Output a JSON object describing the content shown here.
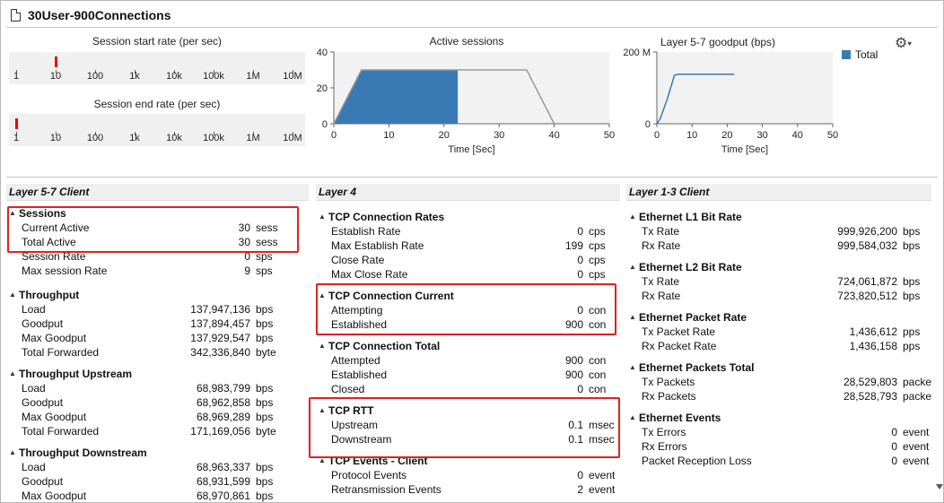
{
  "window": {
    "title": "30User-900Connections"
  },
  "charts": {
    "session_start": {
      "title": "Session start rate (per sec)",
      "ticks": [
        "1",
        "10",
        "100",
        "1k",
        "10k",
        "100k",
        "1M",
        "10M"
      ],
      "marker_value": "10"
    },
    "session_end": {
      "title": "Session end rate (per sec)",
      "ticks": [
        "1",
        "10",
        "100",
        "1k",
        "10k",
        "100k",
        "1M",
        "10M"
      ],
      "marker_value": "1"
    },
    "active_sessions": {
      "title": "Active sessions",
      "xlabel": "Time [Sec]",
      "yticks": [
        "0",
        "20",
        "40"
      ],
      "xticks": [
        "0",
        "10",
        "20",
        "30",
        "40",
        "50"
      ]
    },
    "goodput": {
      "title": "Layer 5-7 goodput (bps)",
      "xlabel": "Time [Sec]",
      "yticks": [
        "0",
        "200 M"
      ],
      "xticks": [
        "0",
        "10",
        "20",
        "30",
        "40",
        "50"
      ],
      "legend": "Total"
    }
  },
  "chart_data": [
    {
      "type": "area",
      "title": "Active sessions",
      "xlabel": "Time [Sec]",
      "ylabel": "",
      "xlim": [
        0,
        50
      ],
      "ylim": [
        0,
        40
      ],
      "series": [
        {
          "x": [
            0,
            5,
            22.5
          ],
          "y": [
            0,
            30,
            30
          ]
        },
        {
          "x": [
            0,
            5,
            35,
            40
          ],
          "y": [
            0,
            30,
            30,
            0
          ]
        }
      ],
      "colors": {
        "fill": "#3a7ab4",
        "outline": "#999999"
      }
    },
    {
      "type": "line",
      "title": "Layer 5-7 goodput (bps)",
      "xlabel": "Time [Sec]",
      "ylabel": "",
      "xlim": [
        0,
        50
      ],
      "ylim": [
        0,
        200000000
      ],
      "series": [
        {
          "name": "Total",
          "x": [
            0,
            1,
            3,
            5,
            6,
            8,
            10,
            14,
            18,
            22
          ],
          "y": [
            0,
            15000000,
            70000000,
            135000000,
            138000000,
            138000000,
            138000000,
            138000000,
            138000000,
            138000000
          ]
        }
      ],
      "colors": {
        "Total": "#3a7ab4"
      }
    }
  ],
  "panels": [
    {
      "header": "Layer 5-7 Client",
      "groups": [
        {
          "title": "Sessions",
          "rows": [
            {
              "label": "Current Active",
              "value": "30",
              "unit": "sess"
            },
            {
              "label": "Total Active",
              "value": "30",
              "unit": "sess"
            },
            {
              "label": "Session Rate",
              "value": "0",
              "unit": "sps"
            },
            {
              "label": "Max session Rate",
              "value": "9",
              "unit": "sps"
            }
          ]
        },
        {
          "title": "Throughput",
          "rows": [
            {
              "label": "Load",
              "value": "137,947,136",
              "unit": "bps"
            },
            {
              "label": "Goodput",
              "value": "137,894,457",
              "unit": "bps"
            },
            {
              "label": "Max Goodput",
              "value": "137,929,547",
              "unit": "bps"
            },
            {
              "label": "Total Forwarded",
              "value": "342,336,840",
              "unit": "byte"
            }
          ]
        },
        {
          "title": "Throughput Upstream",
          "rows": [
            {
              "label": "Load",
              "value": "68,983,799",
              "unit": "bps"
            },
            {
              "label": "Goodput",
              "value": "68,962,858",
              "unit": "bps"
            },
            {
              "label": "Max Goodput",
              "value": "68,969,289",
              "unit": "bps"
            },
            {
              "label": "Total Forwarded",
              "value": "171,169,056",
              "unit": "byte"
            }
          ]
        },
        {
          "title": "Throughput Downstream",
          "rows": [
            {
              "label": "Load",
              "value": "68,963,337",
              "unit": "bps"
            },
            {
              "label": "Goodput",
              "value": "68,931,599",
              "unit": "bps"
            },
            {
              "label": "Max Goodput",
              "value": "68,970,861",
              "unit": "bps"
            }
          ]
        }
      ]
    },
    {
      "header": "Layer 4",
      "groups": [
        {
          "title": "TCP Connection Rates",
          "rows": [
            {
              "label": "Establish Rate",
              "value": "0",
              "unit": "cps"
            },
            {
              "label": "Max Establish Rate",
              "value": "199",
              "unit": "cps"
            },
            {
              "label": "Close Rate",
              "value": "0",
              "unit": "cps"
            },
            {
              "label": "Max Close Rate",
              "value": "0",
              "unit": "cps"
            }
          ]
        },
        {
          "title": "TCP Connection Current",
          "rows": [
            {
              "label": "Attempting",
              "value": "0",
              "unit": "con"
            },
            {
              "label": "Established",
              "value": "900",
              "unit": "con"
            }
          ]
        },
        {
          "title": "TCP Connection Total",
          "rows": [
            {
              "label": "Attempted",
              "value": "900",
              "unit": "con"
            },
            {
              "label": "Established",
              "value": "900",
              "unit": "con"
            },
            {
              "label": "Closed",
              "value": "0",
              "unit": "con"
            }
          ]
        },
        {
          "title": "TCP RTT",
          "rows": [
            {
              "label": "Upstream",
              "value": "0.1",
              "unit": "msec"
            },
            {
              "label": "Downstream",
              "value": "0.1",
              "unit": "msec"
            }
          ]
        },
        {
          "title": "TCP Events - Client",
          "rows": [
            {
              "label": "Protocol Events",
              "value": "0",
              "unit": "event"
            },
            {
              "label": "Retransmission Events",
              "value": "2",
              "unit": "event"
            }
          ]
        }
      ]
    },
    {
      "header": "Layer 1-3 Client",
      "groups": [
        {
          "title": "Ethernet L1 Bit Rate",
          "rows": [
            {
              "label": "Tx Rate",
              "value": "999,926,200",
              "unit": "bps"
            },
            {
              "label": "Rx Rate",
              "value": "999,584,032",
              "unit": "bps"
            }
          ]
        },
        {
          "title": "Ethernet L2 Bit Rate",
          "rows": [
            {
              "label": "Tx Rate",
              "value": "724,061,872",
              "unit": "bps"
            },
            {
              "label": "Rx Rate",
              "value": "723,820,512",
              "unit": "bps"
            }
          ]
        },
        {
          "title": "Ethernet Packet Rate",
          "rows": [
            {
              "label": "Tx Packet Rate",
              "value": "1,436,612",
              "unit": "pps"
            },
            {
              "label": "Rx Packet Rate",
              "value": "1,436,158",
              "unit": "pps"
            }
          ]
        },
        {
          "title": "Ethernet Packets Total",
          "rows": [
            {
              "label": "Tx Packets",
              "value": "28,529,803",
              "unit": "packet"
            },
            {
              "label": "Rx Packets",
              "value": "28,528,793",
              "unit": "packet"
            }
          ]
        },
        {
          "title": "Ethernet Events",
          "rows": [
            {
              "label": "Tx Errors",
              "value": "0",
              "unit": "event"
            },
            {
              "label": "Rx Errors",
              "value": "0",
              "unit": "event"
            },
            {
              "label": "Packet Reception Loss",
              "value": "0",
              "unit": "event"
            }
          ]
        }
      ]
    }
  ],
  "colors": {
    "highlight": "#e02020",
    "accent": "#3a7ab4",
    "marker": "#ee0000"
  }
}
